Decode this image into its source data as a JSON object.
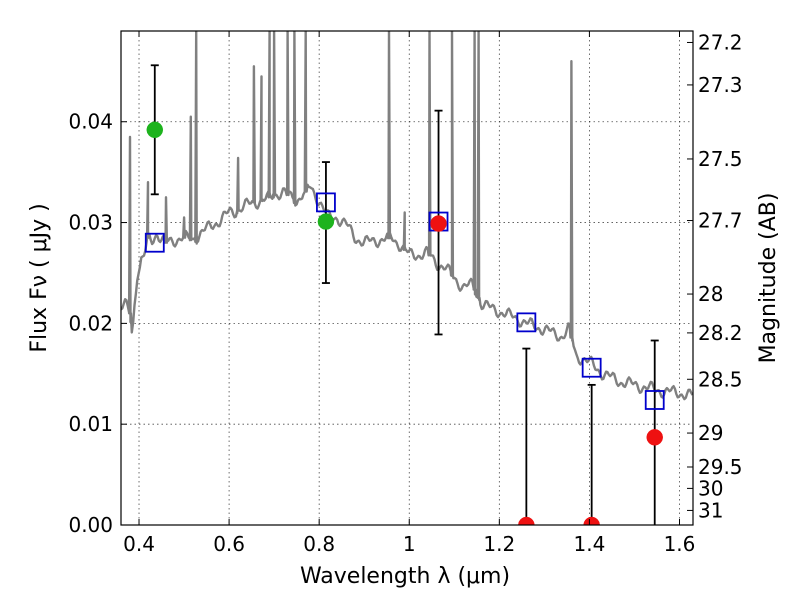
{
  "chart_data": {
    "type": "scatter",
    "xlabel": "Wavelength  λ (μm)",
    "ylabel_left": "Flux  Fν  ( μJy )",
    "ylabel_right": "Magnitude (AB)",
    "xlim": [
      0.36,
      1.63
    ],
    "ylim": [
      0.0,
      0.049
    ],
    "x_ticks": [
      {
        "value": 0.4,
        "label": "0.4"
      },
      {
        "value": 0.6,
        "label": "0.6"
      },
      {
        "value": 0.8,
        "label": "0.8"
      },
      {
        "value": 1.0,
        "label": "1"
      },
      {
        "value": 1.2,
        "label": "1.2"
      },
      {
        "value": 1.4,
        "label": "1.4"
      },
      {
        "value": 1.6,
        "label": "1.6"
      }
    ],
    "y_ticks": [
      {
        "value": 0.0,
        "label": "0.00"
      },
      {
        "value": 0.01,
        "label": "0.01"
      },
      {
        "value": 0.02,
        "label": "0.02"
      },
      {
        "value": 0.03,
        "label": "0.03"
      },
      {
        "value": 0.04,
        "label": "0.04"
      }
    ],
    "right_ticks": [
      {
        "label": "27.2",
        "mag": 27.2
      },
      {
        "label": "27.3",
        "mag": 27.3
      },
      {
        "label": "27.5",
        "mag": 27.5
      },
      {
        "label": "27.7",
        "mag": 27.7
      },
      {
        "label": "28",
        "mag": 28.0
      },
      {
        "label": "28.2",
        "mag": 28.2
      },
      {
        "label": "28.5",
        "mag": 28.5
      },
      {
        "label": "29",
        "mag": 29.0
      },
      {
        "label": "29.5",
        "mag": 29.5
      },
      {
        "label": "30",
        "mag": 30.0
      },
      {
        "label": "31",
        "mag": 31.0
      }
    ],
    "grid": true,
    "sed_color": "#808080",
    "sed_spectrum": [
      [
        0.36,
        0.0215
      ],
      [
        0.37,
        0.0218
      ],
      [
        0.38,
        0.021
      ],
      [
        0.383,
        0.019
      ],
      [
        0.386,
        0.0195
      ],
      [
        0.39,
        0.022
      ],
      [
        0.395,
        0.0245
      ],
      [
        0.398,
        0.0256
      ],
      [
        0.4,
        0.025
      ],
      [
        0.405,
        0.0262
      ],
      [
        0.41,
        0.0265
      ],
      [
        0.415,
        0.0272
      ],
      [
        0.42,
        0.0285
      ],
      [
        0.43,
        0.0283
      ],
      [
        0.44,
        0.029
      ],
      [
        0.45,
        0.0282
      ],
      [
        0.46,
        0.028
      ],
      [
        0.48,
        0.0283
      ],
      [
        0.5,
        0.0285
      ],
      [
        0.52,
        0.0283
      ],
      [
        0.54,
        0.029
      ],
      [
        0.56,
        0.0297
      ],
      [
        0.58,
        0.0302
      ],
      [
        0.6,
        0.031
      ],
      [
        0.62,
        0.0312
      ],
      [
        0.65,
        0.032
      ],
      [
        0.68,
        0.0322
      ],
      [
        0.7,
        0.0328
      ],
      [
        0.72,
        0.033
      ],
      [
        0.75,
        0.0322
      ],
      [
        0.78,
        0.0335
      ],
      [
        0.8,
        0.0322
      ],
      [
        0.82,
        0.0305
      ],
      [
        0.84,
        0.0305
      ],
      [
        0.86,
        0.0298
      ],
      [
        0.88,
        0.0285
      ],
      [
        0.9,
        0.028
      ],
      [
        0.92,
        0.0282
      ],
      [
        0.94,
        0.0283
      ],
      [
        0.96,
        0.0285
      ],
      [
        0.98,
        0.0278
      ],
      [
        1.0,
        0.0268
      ],
      [
        1.02,
        0.0268
      ],
      [
        1.04,
        0.027
      ],
      [
        1.06,
        0.026
      ],
      [
        1.08,
        0.0255
      ],
      [
        1.1,
        0.0245
      ],
      [
        1.12,
        0.0236
      ],
      [
        1.14,
        0.0238
      ],
      [
        1.16,
        0.022
      ],
      [
        1.18,
        0.0215
      ],
      [
        1.2,
        0.0212
      ],
      [
        1.22,
        0.0208
      ],
      [
        1.24,
        0.0205
      ],
      [
        1.26,
        0.02
      ],
      [
        1.28,
        0.0197
      ],
      [
        1.3,
        0.0194
      ],
      [
        1.32,
        0.019
      ],
      [
        1.34,
        0.0187
      ],
      [
        1.355,
        0.0195
      ],
      [
        1.37,
        0.0168
      ],
      [
        1.39,
        0.0164
      ],
      [
        1.41,
        0.0158
      ],
      [
        1.43,
        0.015
      ],
      [
        1.45,
        0.0146
      ],
      [
        1.47,
        0.0142
      ],
      [
        1.5,
        0.0139
      ],
      [
        1.53,
        0.0136
      ],
      [
        1.56,
        0.0133
      ],
      [
        1.6,
        0.0131
      ],
      [
        1.63,
        0.0128
      ]
    ],
    "sed_lines": [
      {
        "x": 0.38,
        "peak": 0.0385
      },
      {
        "x": 0.42,
        "peak": 0.034
      },
      {
        "x": 0.46,
        "peak": 0.0325
      },
      {
        "x": 0.5,
        "peak": 0.0305
      },
      {
        "x": 0.515,
        "peak": 0.0405
      },
      {
        "x": 0.527,
        "peak": 0.049
      },
      {
        "x": 0.62,
        "peak": 0.0364
      },
      {
        "x": 0.655,
        "peak": 0.0455
      },
      {
        "x": 0.672,
        "peak": 0.0445
      },
      {
        "x": 0.69,
        "peak": 0.0495
      },
      {
        "x": 0.7,
        "peak": 0.049
      },
      {
        "x": 0.73,
        "peak": 0.049
      },
      {
        "x": 0.745,
        "peak": 0.049
      },
      {
        "x": 0.77,
        "peak": 0.049
      },
      {
        "x": 0.955,
        "peak": 0.049
      },
      {
        "x": 0.99,
        "peak": 0.031
      },
      {
        "x": 1.045,
        "peak": 0.049
      },
      {
        "x": 1.095,
        "peak": 0.049
      },
      {
        "x": 1.145,
        "peak": 0.049
      },
      {
        "x": 1.154,
        "peak": 0.049
      },
      {
        "x": 1.36,
        "peak": 0.046
      }
    ],
    "series": [
      {
        "marker": "open-square",
        "color": "#0000cc",
        "points": [
          {
            "x": 0.435,
            "y": 0.028
          },
          {
            "x": 0.815,
            "y": 0.032
          },
          {
            "x": 1.065,
            "y": 0.0301
          },
          {
            "x": 1.26,
            "y": 0.0201
          },
          {
            "x": 1.405,
            "y": 0.0156
          },
          {
            "x": 1.545,
            "y": 0.0124
          }
        ]
      },
      {
        "marker": "filled-circle",
        "color": "#1db31d",
        "points": [
          {
            "x": 0.435,
            "y": 0.0392,
            "err_low": 0.0328,
            "err_high": 0.0456
          },
          {
            "x": 0.815,
            "y": 0.0301,
            "err_low": 0.024,
            "err_high": 0.036
          }
        ]
      },
      {
        "marker": "filled-circle",
        "color": "#ee1111",
        "points": [
          {
            "x": 1.065,
            "y": 0.0299,
            "err_low": 0.0189,
            "err_high": 0.0411
          },
          {
            "x": 1.26,
            "y": 0.0,
            "err_low": 0.0,
            "err_high": 0.0175
          },
          {
            "x": 1.405,
            "y": 0.0,
            "err_low": 0.0,
            "err_high": 0.0139
          },
          {
            "x": 1.545,
            "y": 0.0087,
            "err_low": 0.0,
            "err_high": 0.0183
          }
        ]
      }
    ]
  }
}
